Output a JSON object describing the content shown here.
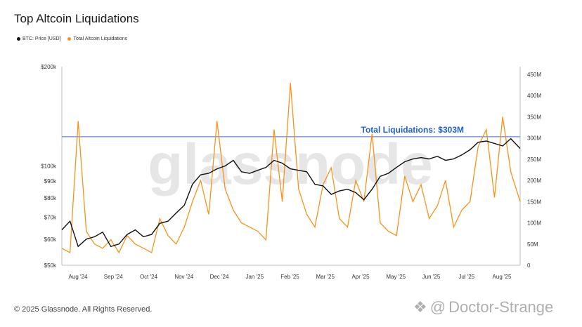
{
  "title": "Top Altcoin Liquidations",
  "footer": "© 2025 Glassnode. All Rights Reserved.",
  "watermark": "glassnode",
  "user_watermark": {
    "at": "@",
    "name": "Doctor-Strange"
  },
  "colors": {
    "btc": "#111111",
    "liq": "#f7931a",
    "ref_line": "#3b6fd4",
    "annotation": "#1f5fd6",
    "watermark": "#e6e6e6"
  },
  "chart_data": {
    "type": "line",
    "title": "Top Altcoin Liquidations",
    "legend_position": "top-left",
    "grid": false,
    "x_ticks": [
      "Aug '24",
      "Sep '24",
      "Oct '24",
      "Nov '24",
      "Dec '24",
      "Jan '25",
      "Feb '25",
      "Mar '25",
      "Apr '25",
      "May '25",
      "Jun '25",
      "Jul '25",
      "Aug '25"
    ],
    "x_range": [
      "2024-07-22",
      "2025-08-19"
    ],
    "y_left": {
      "scale": "log",
      "range": [
        50000,
        200000
      ],
      "ticks": [
        50000,
        60000,
        70000,
        80000,
        90000,
        100000,
        200000
      ],
      "tick_labels": [
        "$50k",
        "$60k",
        "$70k",
        "$80k",
        "$90k",
        "$100k",
        "$200k"
      ]
    },
    "y_right": {
      "scale": "linear",
      "range": [
        0,
        450
      ],
      "unit": "M",
      "ticks": [
        0,
        50,
        100,
        150,
        200,
        250,
        300,
        350,
        400,
        450
      ],
      "tick_labels": [
        "0",
        "50M",
        "100M",
        "150M",
        "200M",
        "250M",
        "300M",
        "350M",
        "400M",
        "450M"
      ]
    },
    "reference_line": {
      "value": 303,
      "axis": "right",
      "label": "Total Liquidations: $303M"
    },
    "series": [
      {
        "name": "BTC: Price [USD]",
        "axis": "left",
        "x": [
          "2024-07-22",
          "2024-07-29",
          "2024-08-05",
          "2024-08-12",
          "2024-08-19",
          "2024-08-26",
          "2024-09-02",
          "2024-09-09",
          "2024-09-16",
          "2024-09-23",
          "2024-09-30",
          "2024-10-07",
          "2024-10-14",
          "2024-10-21",
          "2024-10-28",
          "2024-11-04",
          "2024-11-11",
          "2024-11-18",
          "2024-11-25",
          "2024-12-02",
          "2024-12-09",
          "2024-12-16",
          "2024-12-23",
          "2024-12-30",
          "2025-01-06",
          "2025-01-13",
          "2025-01-20",
          "2025-01-27",
          "2025-02-03",
          "2025-02-10",
          "2025-02-17",
          "2025-02-24",
          "2025-03-03",
          "2025-03-10",
          "2025-03-17",
          "2025-03-24",
          "2025-03-31",
          "2025-04-07",
          "2025-04-14",
          "2025-04-21",
          "2025-04-28",
          "2025-05-05",
          "2025-05-12",
          "2025-05-19",
          "2025-05-26",
          "2025-06-02",
          "2025-06-09",
          "2025-06-16",
          "2025-06-23",
          "2025-06-30",
          "2025-07-07",
          "2025-07-14",
          "2025-07-21",
          "2025-07-28",
          "2025-08-04",
          "2025-08-11",
          "2025-08-19"
        ],
        "values": [
          64000,
          68000,
          57000,
          60000,
          61000,
          63000,
          57000,
          58000,
          62000,
          64000,
          61000,
          62000,
          67000,
          68000,
          72000,
          76000,
          88000,
          94000,
          95000,
          98000,
          100000,
          104000,
          96000,
          95000,
          97000,
          99000,
          104000,
          102000,
          98000,
          97000,
          96000,
          88000,
          87000,
          82000,
          84000,
          85000,
          83000,
          79000,
          85000,
          93000,
          95000,
          99000,
          103000,
          105000,
          106000,
          105000,
          107000,
          104000,
          105000,
          108000,
          112000,
          118000,
          119000,
          117000,
          115000,
          121000,
          113000
        ]
      },
      {
        "name": "Total Altcoin Liquidations",
        "axis": "right",
        "x": [
          "2024-07-22",
          "2024-07-29",
          "2024-08-05",
          "2024-08-12",
          "2024-08-19",
          "2024-08-26",
          "2024-09-02",
          "2024-09-09",
          "2024-09-16",
          "2024-09-23",
          "2024-09-30",
          "2024-10-07",
          "2024-10-14",
          "2024-10-21",
          "2024-10-28",
          "2024-11-04",
          "2024-11-11",
          "2024-11-18",
          "2024-11-25",
          "2024-12-02",
          "2024-12-09",
          "2024-12-16",
          "2024-12-23",
          "2024-12-30",
          "2025-01-06",
          "2025-01-13",
          "2025-01-20",
          "2025-01-27",
          "2025-02-03",
          "2025-02-10",
          "2025-02-17",
          "2025-02-24",
          "2025-03-03",
          "2025-03-10",
          "2025-03-17",
          "2025-03-24",
          "2025-03-31",
          "2025-04-07",
          "2025-04-14",
          "2025-04-21",
          "2025-04-28",
          "2025-05-05",
          "2025-05-12",
          "2025-05-19",
          "2025-05-26",
          "2025-06-02",
          "2025-06-09",
          "2025-06-16",
          "2025-06-23",
          "2025-06-30",
          "2025-07-07",
          "2025-07-14",
          "2025-07-21",
          "2025-07-28",
          "2025-08-04",
          "2025-08-11",
          "2025-08-19"
        ],
        "values": [
          40,
          30,
          340,
          80,
          50,
          40,
          60,
          30,
          70,
          50,
          40,
          30,
          110,
          70,
          50,
          90,
          150,
          200,
          120,
          340,
          180,
          130,
          100,
          90,
          80,
          60,
          320,
          150,
          430,
          180,
          120,
          90,
          190,
          230,
          110,
          90,
          200,
          150,
          310,
          100,
          80,
          70,
          210,
          150,
          190,
          110,
          140,
          200,
          90,
          130,
          150,
          280,
          320,
          160,
          350,
          220,
          150
        ]
      }
    ]
  }
}
